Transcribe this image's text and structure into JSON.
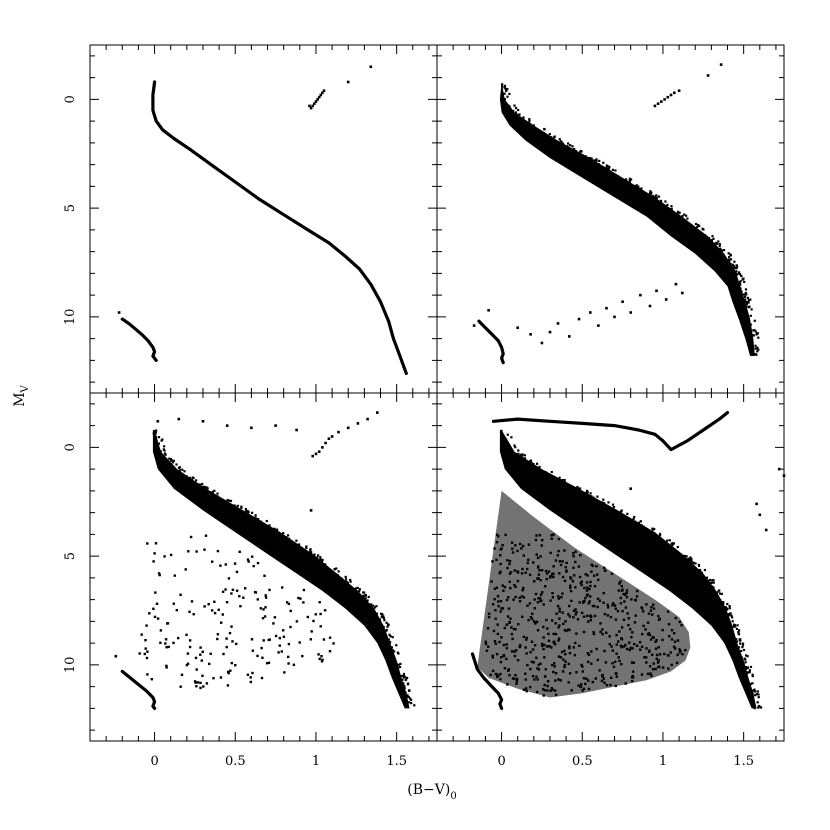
{
  "chart_data": {
    "type": "scatter",
    "title": "",
    "xlabel": "(B−V)",
    "xlabel_subscript": "0",
    "ylabel": "M",
    "ylabel_subscript": "V",
    "xlim": [
      -0.4,
      1.75
    ],
    "ylim": [
      13.5,
      -2.5
    ],
    "y_inverted": true,
    "grid": false,
    "legend": "none",
    "layout": "2x2 panels, shared axes",
    "x_ticks": [
      0,
      0.5,
      1,
      1.5
    ],
    "x_tick_labels": [
      "0",
      "0.5",
      "1",
      "1.5"
    ],
    "y_ticks": [
      0,
      5,
      10
    ],
    "y_tick_labels": [
      "0",
      "5",
      "10"
    ],
    "panels": [
      {
        "position": "top-left",
        "series": [
          {
            "kind": "curve",
            "x": [
              0.0,
              -0.01,
              -0.01,
              0.01,
              0.05,
              0.12,
              0.22,
              0.35,
              0.5,
              0.65,
              0.8,
              0.95,
              1.08,
              1.18,
              1.27,
              1.34,
              1.4,
              1.45,
              1.48,
              1.52,
              1.56
            ],
            "y": [
              -0.8,
              -0.2,
              0.5,
              1.0,
              1.4,
              1.8,
              2.3,
              3.0,
              3.8,
              4.6,
              5.3,
              6.0,
              6.6,
              7.2,
              7.8,
              8.5,
              9.3,
              10.2,
              11.0,
              11.8,
              12.6
            ]
          },
          {
            "kind": "curve",
            "x": [
              -0.2,
              -0.16,
              -0.12,
              -0.08,
              -0.04,
              -0.01,
              0.0,
              -0.01,
              0.01
            ],
            "y": [
              10.1,
              10.3,
              10.55,
              10.8,
              11.1,
              11.4,
              11.6,
              11.8,
              12.0
            ]
          },
          {
            "kind": "points",
            "x": [
              -0.22,
              0.96,
              0.97,
              0.98,
              0.99,
              1.0,
              1.01,
              1.02,
              1.03,
              1.04,
              1.05,
              1.2,
              1.34
            ],
            "y": [
              9.8,
              0.3,
              0.4,
              0.3,
              0.2,
              0.1,
              0.0,
              -0.1,
              -0.2,
              -0.3,
              -0.4,
              -0.8,
              -1.5
            ]
          }
        ]
      },
      {
        "position": "top-right",
        "series": [
          {
            "kind": "band",
            "x_left": [
              0.0,
              -0.01,
              0.0,
              0.05,
              0.15,
              0.3,
              0.5,
              0.7,
              0.9,
              1.05,
              1.2,
              1.32,
              1.4,
              1.43,
              1.47,
              1.51,
              1.54
            ],
            "x_right": [
              0.0,
              0.02,
              0.08,
              0.2,
              0.35,
              0.55,
              0.75,
              0.95,
              1.12,
              1.28,
              1.38,
              1.45,
              1.48,
              1.51,
              1.54,
              1.56,
              1.57
            ],
            "y": [
              -0.8,
              0.0,
              0.6,
              1.2,
              1.9,
              2.7,
              3.6,
              4.5,
              5.4,
              6.3,
              7.1,
              7.9,
              8.6,
              9.3,
              10.1,
              11.0,
              11.8
            ]
          },
          {
            "kind": "curve",
            "x": [
              -0.14,
              -0.1,
              -0.06,
              -0.02,
              0.0,
              0.01,
              0.0,
              0.01
            ],
            "y": [
              10.2,
              10.5,
              10.8,
              11.1,
              11.4,
              11.7,
              11.9,
              12.1
            ]
          },
          {
            "kind": "points",
            "x": [
              -0.17,
              -0.08,
              0.1,
              0.18,
              0.25,
              0.3,
              0.35,
              0.42,
              0.48,
              0.55,
              0.6,
              0.65,
              0.7,
              0.75,
              0.8,
              0.86,
              0.92,
              0.96,
              1.02,
              1.08,
              1.12,
              0.95,
              0.97,
              0.99,
              1.01,
              1.03,
              1.05,
              1.07,
              1.1,
              1.28,
              1.36
            ],
            "y": [
              10.4,
              9.7,
              10.5,
              10.8,
              11.2,
              10.7,
              10.3,
              10.9,
              10.1,
              9.8,
              10.4,
              9.6,
              10.0,
              9.3,
              9.8,
              9.0,
              9.5,
              8.8,
              9.2,
              8.5,
              8.9,
              0.3,
              0.2,
              0.1,
              0.0,
              -0.1,
              -0.2,
              -0.3,
              -0.4,
              -1.1,
              -1.6
            ]
          }
        ]
      },
      {
        "position": "bottom-left",
        "series": [
          {
            "kind": "band",
            "x_left": [
              -0.01,
              -0.01,
              0.02,
              0.12,
              0.3,
              0.5,
              0.7,
              0.88,
              1.04,
              1.18,
              1.3,
              1.38,
              1.43,
              1.47,
              1.51,
              1.55
            ],
            "x_right": [
              0.0,
              0.04,
              0.14,
              0.32,
              0.55,
              0.78,
              0.98,
              1.13,
              1.26,
              1.36,
              1.42,
              1.46,
              1.5,
              1.53,
              1.56,
              1.58
            ],
            "y": [
              -0.8,
              0.2,
              1.0,
              1.9,
              2.9,
              3.9,
              4.9,
              5.8,
              6.6,
              7.4,
              8.2,
              9.0,
              9.8,
              10.6,
              11.3,
              12.0
            ]
          },
          {
            "kind": "wedge",
            "outer_x": [
              0.0,
              0.1,
              0.3,
              0.55,
              0.8,
              1.0,
              1.1,
              1.15,
              1.14,
              1.1,
              1.02,
              0.9,
              0.72,
              0.5,
              0.3,
              0.1,
              -0.08,
              -0.15
            ],
            "outer_y": [
              0.8,
              1.8,
              3.2,
              4.6,
              5.8,
              6.8,
              7.5,
              8.3,
              9.0,
              9.6,
              10.0,
              10.4,
              10.7,
              11.0,
              11.2,
              11.0,
              10.6,
              10.2
            ],
            "density": "sparse"
          },
          {
            "kind": "curve",
            "x": [
              -0.2,
              -0.15,
              -0.1,
              -0.05,
              -0.01,
              0.0,
              -0.01,
              0.0
            ],
            "y": [
              10.3,
              10.6,
              10.9,
              11.2,
              11.5,
              11.7,
              11.9,
              12.0
            ]
          },
          {
            "kind": "points",
            "x": [
              -0.24,
              0.02,
              0.15,
              0.3,
              0.45,
              0.6,
              0.75,
              0.88,
              0.97,
              0.98,
              1.0,
              1.02,
              1.04,
              1.06,
              1.08,
              1.1,
              1.14,
              1.2,
              1.26,
              1.32,
              1.38
            ],
            "y": [
              9.6,
              -1.2,
              -1.3,
              -1.2,
              -1.0,
              -0.9,
              -1.0,
              -0.8,
              2.9,
              0.4,
              0.3,
              0.2,
              0.0,
              -0.2,
              -0.4,
              -0.5,
              -0.7,
              -0.9,
              -1.1,
              -1.3,
              -1.6
            ]
          }
        ]
      },
      {
        "position": "bottom-right",
        "series": [
          {
            "kind": "band",
            "x_left": [
              -0.01,
              -0.01,
              0.02,
              0.12,
              0.3,
              0.5,
              0.7,
              0.88,
              1.04,
              1.18,
              1.3,
              1.38,
              1.43,
              1.47,
              1.51,
              1.55
            ],
            "x_right": [
              0.0,
              0.08,
              0.25,
              0.48,
              0.72,
              0.95,
              1.12,
              1.25,
              1.33,
              1.39,
              1.43,
              1.46,
              1.5,
              1.53,
              1.56,
              1.58
            ],
            "y": [
              -0.8,
              0.2,
              1.0,
              1.9,
              2.9,
              3.9,
              4.9,
              5.8,
              6.6,
              7.4,
              8.2,
              9.0,
              9.8,
              10.6,
              11.3,
              12.0
            ]
          },
          {
            "kind": "wedge",
            "outer_x": [
              0.0,
              0.2,
              0.45,
              0.7,
              0.95,
              1.1,
              1.16,
              1.17,
              1.14,
              1.05,
              0.9,
              0.7,
              0.5,
              0.3,
              0.1,
              -0.08,
              -0.15
            ],
            "outer_y": [
              2.0,
              3.2,
              4.6,
              5.8,
              7.0,
              7.8,
              8.5,
              9.2,
              9.8,
              10.3,
              10.7,
              11.0,
              11.3,
              11.5,
              11.1,
              10.6,
              10.1
            ],
            "density": "dense"
          },
          {
            "kind": "curve",
            "x": [
              -0.18,
              -0.15,
              -0.11,
              -0.06,
              -0.02,
              0.0,
              -0.01,
              0.0
            ],
            "y": [
              9.5,
              10.2,
              10.6,
              11.0,
              11.3,
              11.6,
              11.8,
              12.0
            ]
          },
          {
            "kind": "curve",
            "x": [
              -0.05,
              0.1,
              0.3,
              0.5,
              0.7,
              0.85,
              0.95,
              1.0,
              1.05,
              1.15,
              1.25,
              1.35,
              1.4
            ],
            "y": [
              -1.2,
              -1.3,
              -1.2,
              -1.1,
              -1.0,
              -0.8,
              -0.6,
              -0.3,
              0.1,
              -0.3,
              -0.8,
              -1.3,
              -1.6
            ]
          },
          {
            "kind": "points",
            "x": [
              0.8,
              1.58,
              1.6,
              1.64,
              1.72,
              1.75
            ],
            "y": [
              1.9,
              2.6,
              3.1,
              3.8,
              1.0,
              1.3
            ]
          }
        ]
      }
    ]
  }
}
